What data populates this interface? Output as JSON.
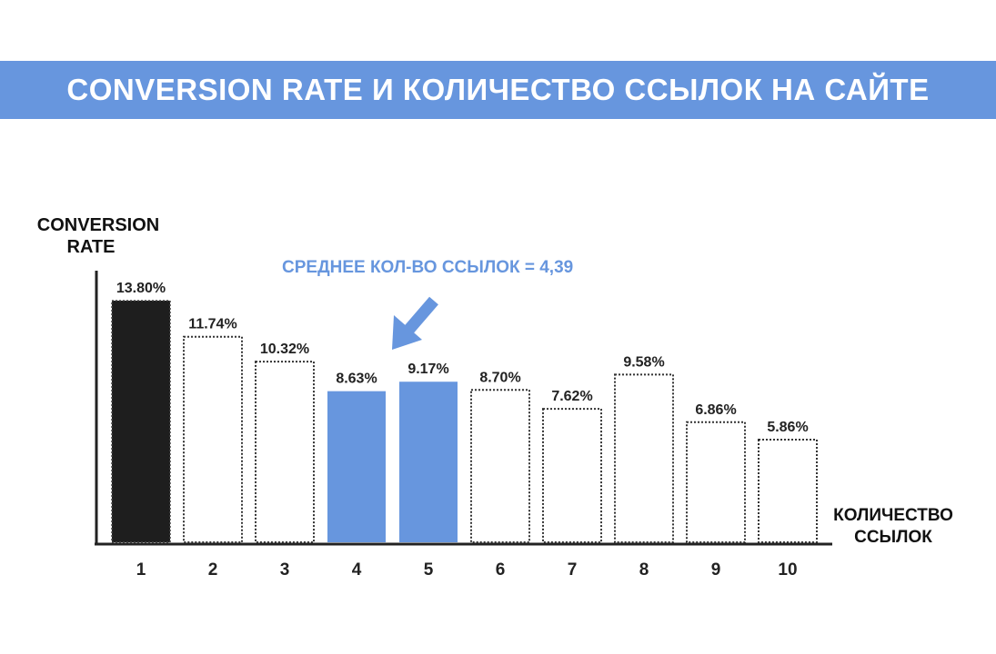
{
  "header": {
    "title": "CONVERSION RATE И КОЛИЧЕСТВО ССЫЛОК НА САЙТЕ"
  },
  "chart_data": {
    "type": "bar",
    "categories": [
      "1",
      "2",
      "3",
      "4",
      "5",
      "6",
      "7",
      "8",
      "9",
      "10"
    ],
    "values": [
      13.8,
      11.74,
      10.32,
      8.63,
      9.17,
      8.7,
      7.62,
      9.58,
      6.86,
      5.86
    ],
    "value_labels": [
      "13.80%",
      "11.74%",
      "10.32%",
      "8.63%",
      "9.17%",
      "8.70%",
      "7.62%",
      "9.58%",
      "6.86%",
      "5.86%"
    ],
    "bar_styles": [
      "dark",
      "outline",
      "outline",
      "highlight",
      "highlight",
      "outline",
      "outline",
      "outline",
      "outline",
      "outline"
    ],
    "ylabel_lines": [
      "CONVERSION",
      "RATE"
    ],
    "xlabel_lines": [
      "КОЛИЧЕСТВО",
      "ССЫЛОК"
    ],
    "ylim": [
      0,
      13.8
    ],
    "grid": false,
    "annotation": {
      "text": "СРЕДНЕЕ КОЛ-ВО ССЫЛОК = 4,39",
      "points_to": "between 4 and 5"
    },
    "colors": {
      "dark": "#1e1e1e",
      "highlight": "#6796de",
      "outline": "#333333",
      "banner": "#6796de",
      "annotation": "#6796de"
    }
  }
}
